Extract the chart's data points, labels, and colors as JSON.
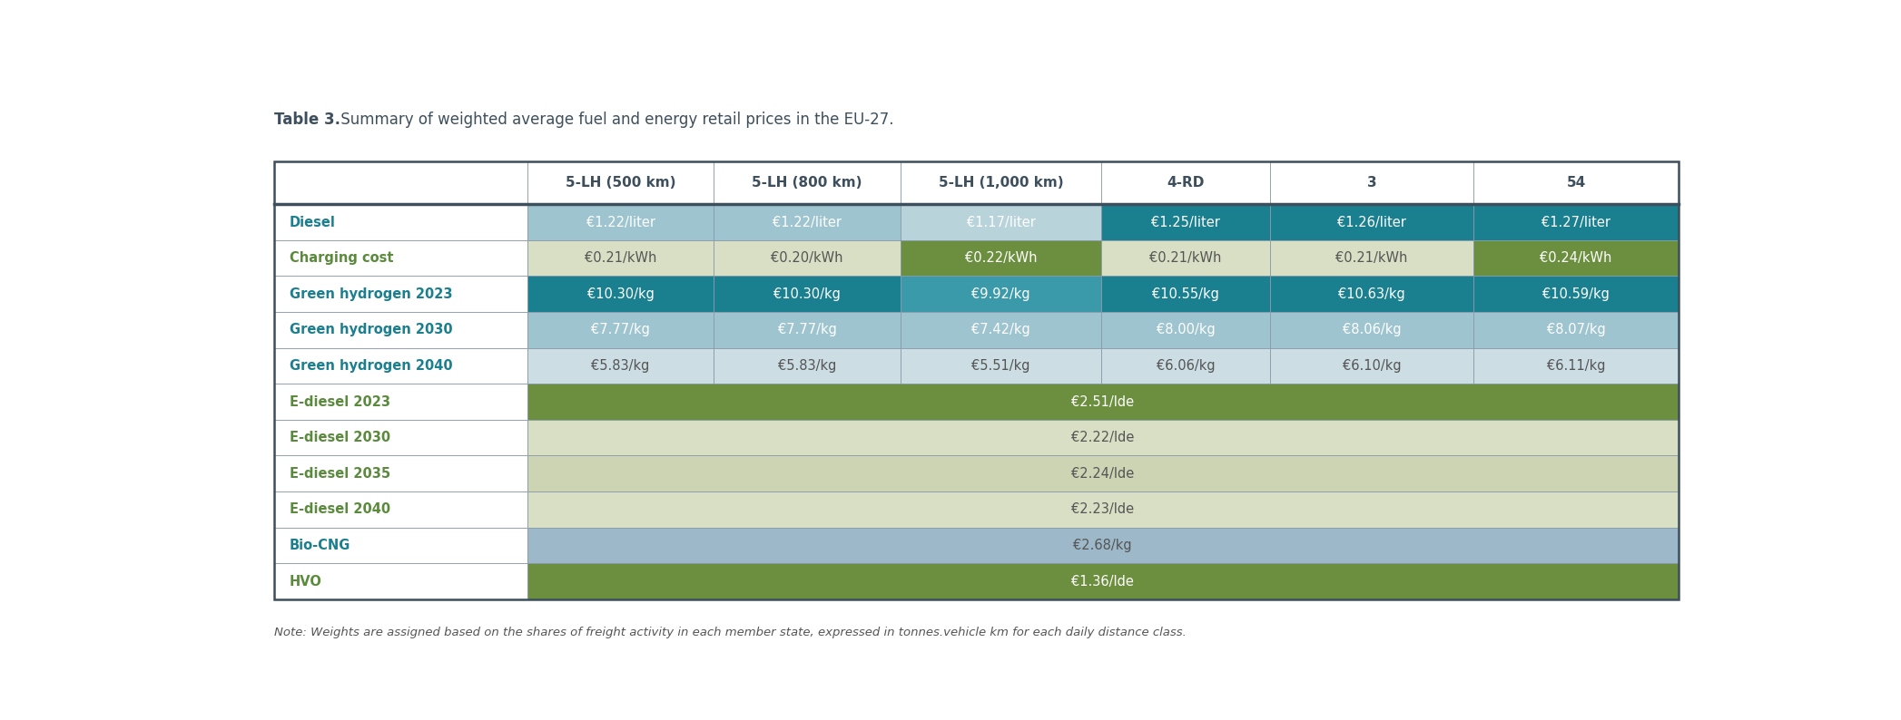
{
  "title_bold": "Table 3.",
  "title_normal": " Summary of weighted average fuel and energy retail prices in the EU-27.",
  "note": "Note: Weights are assigned based on the shares of freight activity in each member state, expressed in tonnes.vehicle km for each daily distance class.",
  "columns": [
    "",
    "5-LH (500 km)",
    "5-LH (800 km)",
    "5-LH (1,000 km)",
    "4-RD",
    "3",
    "54"
  ],
  "rows": [
    {
      "label": "Diesel",
      "label_color": "#1a7f8e",
      "label_bold": true,
      "values": [
        "€1.22/liter",
        "€1.22/liter",
        "€1.17/liter",
        "€1.25/liter",
        "€1.26/liter",
        "€1.27/liter"
      ],
      "cell_colors": [
        "#9dc4cf",
        "#9dc4cf",
        "#b8d3da",
        "#1a7f8e",
        "#1a7f8e",
        "#1a7f8e"
      ],
      "text_colors": [
        "#ffffff",
        "#ffffff",
        "#ffffff",
        "#ffffff",
        "#ffffff",
        "#ffffff"
      ],
      "span": false
    },
    {
      "label": "Charging cost",
      "label_color": "#5a8a3c",
      "label_bold": true,
      "values": [
        "€0.21/kWh",
        "€0.20/kWh",
        "€0.22/kWh",
        "€0.21/kWh",
        "€0.21/kWh",
        "€0.24/kWh"
      ],
      "cell_colors": [
        "#d9dfc4",
        "#d9dfc4",
        "#6b8f3e",
        "#d9dfc4",
        "#d9dfc4",
        "#6b8f3e"
      ],
      "text_colors": [
        "#555555",
        "#555555",
        "#ffffff",
        "#555555",
        "#555555",
        "#ffffff"
      ],
      "span": false
    },
    {
      "label": "Green hydrogen 2023",
      "label_color": "#1a7f8e",
      "label_bold": true,
      "values": [
        "€10.30/kg",
        "€10.30/kg",
        "€9.92/kg",
        "€10.55/kg",
        "€10.63/kg",
        "€10.59/kg"
      ],
      "cell_colors": [
        "#1a7f8e",
        "#1a7f8e",
        "#3a9aaa",
        "#1a7f8e",
        "#1a7f8e",
        "#1a7f8e"
      ],
      "text_colors": [
        "#ffffff",
        "#ffffff",
        "#ffffff",
        "#ffffff",
        "#ffffff",
        "#ffffff"
      ],
      "span": false
    },
    {
      "label": "Green hydrogen 2030",
      "label_color": "#1a7f8e",
      "label_bold": true,
      "values": [
        "€7.77/kg",
        "€7.77/kg",
        "€7.42/kg",
        "€8.00/kg",
        "€8.06/kg",
        "€8.07/kg"
      ],
      "cell_colors": [
        "#9dc4cf",
        "#9dc4cf",
        "#9dc4cf",
        "#9dc4cf",
        "#9dc4cf",
        "#9dc4cf"
      ],
      "text_colors": [
        "#ffffff",
        "#ffffff",
        "#ffffff",
        "#ffffff",
        "#ffffff",
        "#ffffff"
      ],
      "span": false
    },
    {
      "label": "Green hydrogen 2040",
      "label_color": "#1a7f8e",
      "label_bold": true,
      "values": [
        "€5.83/kg",
        "€5.83/kg",
        "€5.51/kg",
        "€6.06/kg",
        "€6.10/kg",
        "€6.11/kg"
      ],
      "cell_colors": [
        "#ccdde3",
        "#ccdde3",
        "#ccdde3",
        "#ccdde3",
        "#ccdde3",
        "#ccdde3"
      ],
      "text_colors": [
        "#555555",
        "#555555",
        "#555555",
        "#555555",
        "#555555",
        "#555555"
      ],
      "span": false
    },
    {
      "label": "E-diesel 2023",
      "label_color": "#5a8a3c",
      "label_bold": true,
      "span": true,
      "span_text": "€2.51/lde",
      "span_color": "#6b8f3e",
      "span_text_color": "#ffffff"
    },
    {
      "label": "E-diesel 2030",
      "label_color": "#5a8a3c",
      "label_bold": true,
      "span": true,
      "span_text": "€2.22/lde",
      "span_color": "#d9dfc4",
      "span_text_color": "#555555"
    },
    {
      "label": "E-diesel 2035",
      "label_color": "#5a8a3c",
      "label_bold": true,
      "span": true,
      "span_text": "€2.24/lde",
      "span_color": "#ccd4b4",
      "span_text_color": "#555555"
    },
    {
      "label": "E-diesel 2040",
      "label_color": "#5a8a3c",
      "label_bold": true,
      "span": true,
      "span_text": "€2.23/lde",
      "span_color": "#d9dfc4",
      "span_text_color": "#555555"
    },
    {
      "label": "Bio-CNG",
      "label_color": "#1a7f8e",
      "label_bold": true,
      "span": true,
      "span_text": "€2.68/kg",
      "span_color": "#9db8c8",
      "span_text_color": "#555555"
    },
    {
      "label": "HVO",
      "label_color": "#5a8a3c",
      "label_bold": true,
      "span": true,
      "span_text": "€1.36/lde",
      "span_color": "#6b8f3e",
      "span_text_color": "#ffffff"
    }
  ],
  "title_color": "#3d4f5c",
  "note_color": "#555555",
  "header_bg": "#ffffff",
  "header_text_color": "#3d4f5c",
  "label_bg": "#ffffff",
  "border_color": "#8a9aaa",
  "header_border_bottom": "#3d4f5c",
  "fig_bg": "#ffffff"
}
